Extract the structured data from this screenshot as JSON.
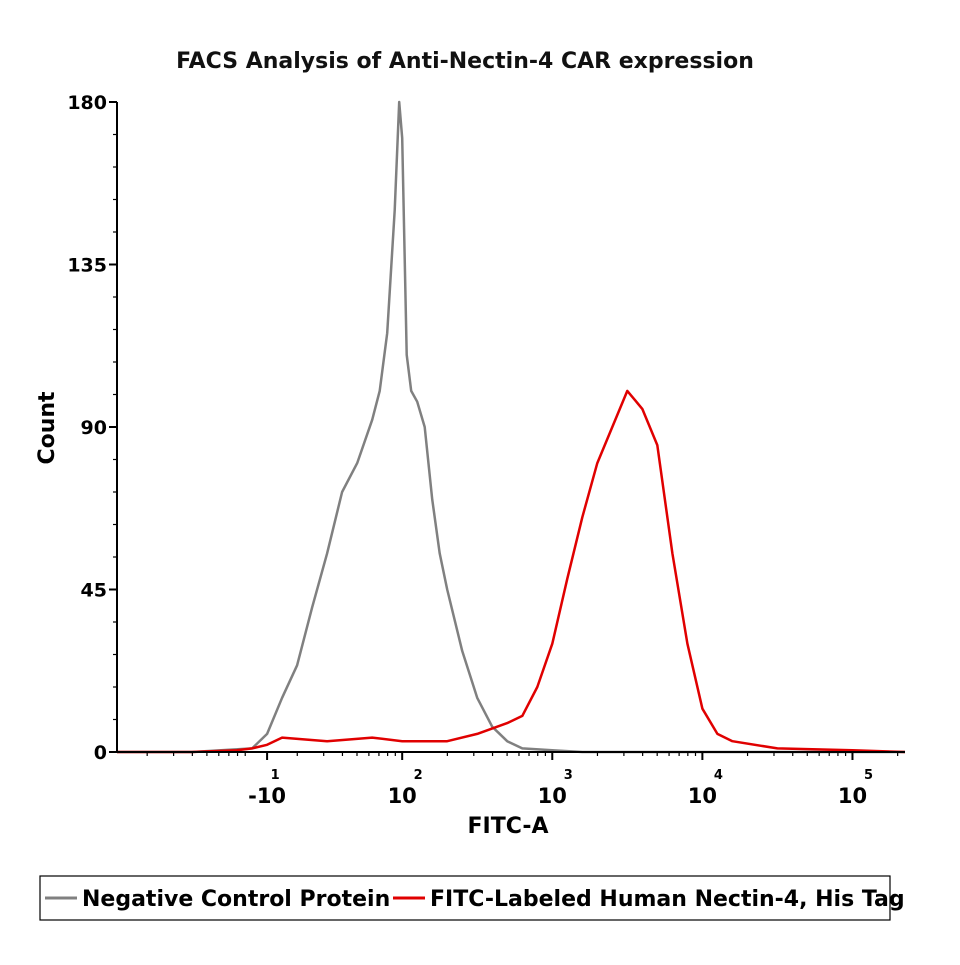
{
  "chart_data": {
    "type": "area",
    "title": "FACS Analysis of Anti-Nectin-4 CAR expression",
    "xlabel": "FITC-A",
    "ylabel": "Count",
    "y_ticks": [
      "0",
      "45",
      "90",
      "135",
      "180"
    ],
    "ylim": [
      0,
      180
    ],
    "x_ticks": [
      {
        "base": "-10",
        "exp": "1",
        "value": 1.1
      },
      {
        "base": "10",
        "exp": "2",
        "value": 2.0
      },
      {
        "base": "10",
        "exp": "3",
        "value": 3.0
      },
      {
        "base": "10",
        "exp": "4",
        "value": 4.0
      },
      {
        "base": "10",
        "exp": "5",
        "value": 5.0
      }
    ],
    "xlim": [
      0.1,
      5.35
    ],
    "grid": false,
    "legend_placement": "bottom",
    "series": [
      {
        "name": "Negative Control Protein",
        "color": "#808080",
        "x": [
          0.1,
          0.6,
          1.0,
          1.1,
          1.2,
          1.3,
          1.4,
          1.5,
          1.6,
          1.7,
          1.8,
          1.85,
          1.9,
          1.95,
          1.98,
          2.0,
          2.03,
          2.06,
          2.1,
          2.15,
          2.2,
          2.25,
          2.3,
          2.4,
          2.5,
          2.6,
          2.7,
          2.8,
          3.0,
          3.2,
          5.35
        ],
        "y": [
          0,
          0,
          1,
          5,
          15,
          24,
          40,
          55,
          72,
          80,
          92,
          100,
          116,
          150,
          180,
          170,
          110,
          100,
          97,
          90,
          70,
          55,
          45,
          28,
          15,
          7,
          3,
          1,
          0.5,
          0,
          0
        ]
      },
      {
        "name": "FITC-Labeled Human Nectin-4, His Tag",
        "color": "#e00000",
        "x": [
          0.1,
          0.6,
          0.9,
          1.0,
          1.1,
          1.2,
          1.5,
          1.8,
          2.0,
          2.3,
          2.5,
          2.7,
          2.8,
          2.9,
          3.0,
          3.1,
          3.2,
          3.3,
          3.4,
          3.5,
          3.6,
          3.7,
          3.8,
          3.9,
          4.0,
          4.1,
          4.2,
          4.5,
          5.0,
          5.35
        ],
        "y": [
          0,
          0,
          0.5,
          1,
          2,
          4,
          3,
          4,
          3,
          3,
          5,
          8,
          10,
          18,
          30,
          48,
          65,
          80,
          90,
          100,
          95,
          85,
          55,
          30,
          12,
          5,
          3,
          1,
          0.5,
          0
        ]
      }
    ]
  }
}
